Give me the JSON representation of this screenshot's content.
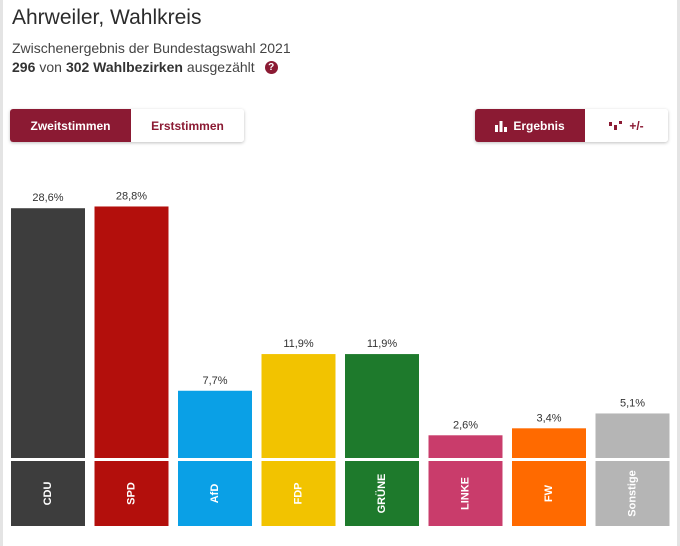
{
  "header": {
    "title": "Ahrweiler, Wahlkreis",
    "subtitle": "Zwischenergebnis der Bundestagswahl 2021",
    "counted_done": "296",
    "counted_of": "von",
    "counted_total": "302 Wahlbezirken",
    "counted_suffix": "ausgezählt",
    "help_icon_glyph": "?"
  },
  "vote_toggle": {
    "zweitstimmen_label": "Zweitstimmen",
    "erststimmen_label": "Erststimmen",
    "selected": "Zweitstimmen"
  },
  "view_toggle": {
    "ergebnis_label": "Ergebnis",
    "diff_label": "+/-",
    "selected": "Ergebnis"
  },
  "colors": {
    "accent": "#8b1a33"
  },
  "chart_data": {
    "type": "bar",
    "categories": [
      "CDU",
      "SPD",
      "AfD",
      "FDP",
      "GRÜNE",
      "LINKE",
      "FW",
      "Sonstige"
    ],
    "values": [
      28.6,
      28.8,
      7.7,
      11.9,
      11.9,
      2.6,
      3.4,
      5.1
    ],
    "value_labels": [
      "28,6%",
      "28,8%",
      "7,7%",
      "11,9%",
      "11,9%",
      "2,6%",
      "3,4%",
      "5,1%"
    ],
    "colors": [
      "#3d3d3d",
      "#b30f0c",
      "#0aa0e6",
      "#f2c300",
      "#1e7a2c",
      "#c93c6b",
      "#ff6a00",
      "#b5b5b5"
    ],
    "ylim": [
      0,
      30
    ],
    "grid": false,
    "legend": "none"
  }
}
